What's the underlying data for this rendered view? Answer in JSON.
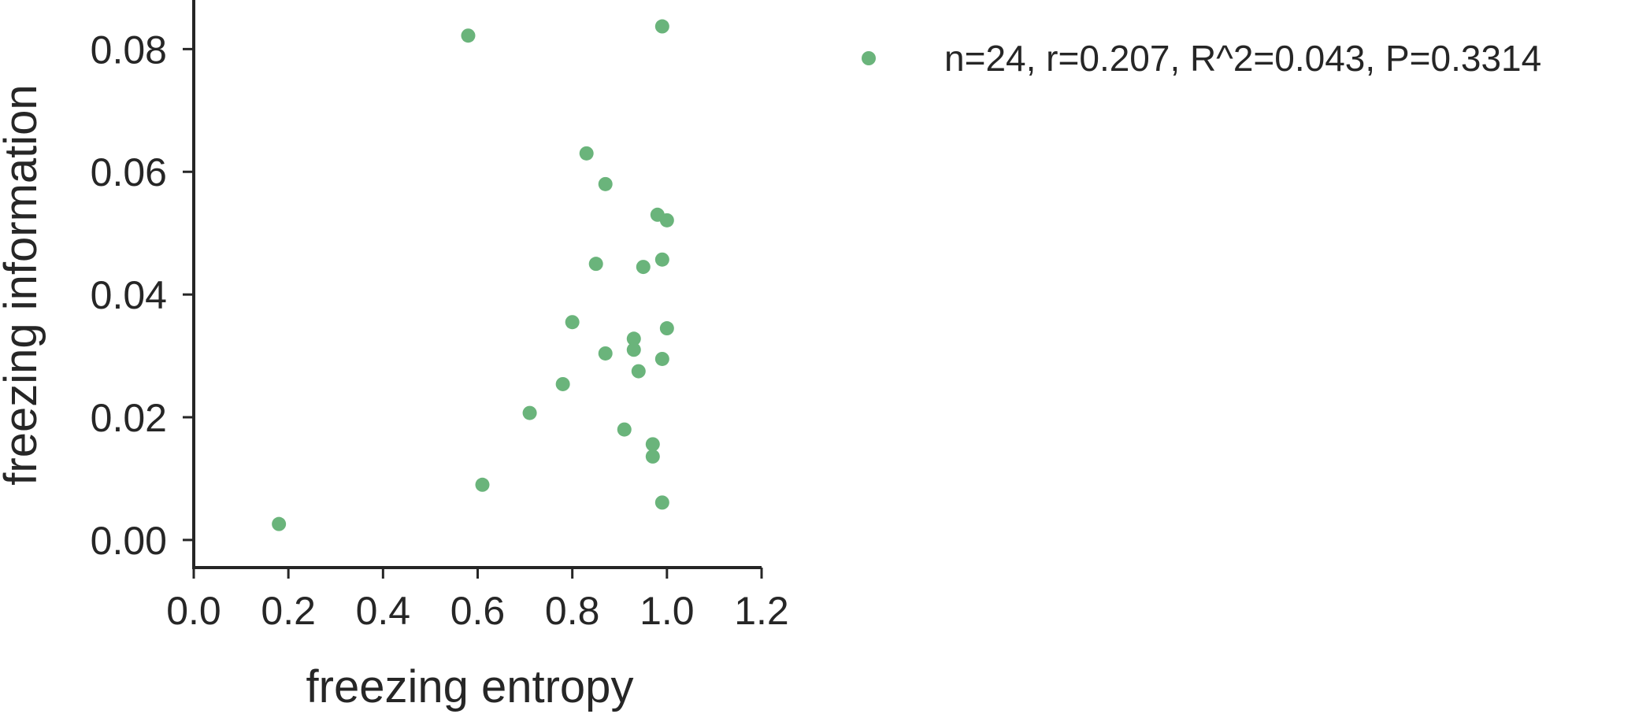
{
  "chart_data": {
    "type": "scatter",
    "title": "",
    "xlabel": "freezing entropy",
    "ylabel": "freezing information",
    "xlim": [
      0.0,
      1.2
    ],
    "ylim": [
      -0.0045,
      0.088
    ],
    "xticks": [
      0.0,
      0.2,
      0.4,
      0.6,
      0.8,
      1.0,
      1.2
    ],
    "xtick_labels": [
      "0.0",
      "0.2",
      "0.4",
      "0.6",
      "0.8",
      "1.0",
      "1.2"
    ],
    "yticks": [
      0.0,
      0.02,
      0.04,
      0.06,
      0.08
    ],
    "ytick_labels": [
      "0.00",
      "0.02",
      "0.04",
      "0.06",
      "0.08"
    ],
    "grid": false,
    "legend_position": "top-right, outside plot area",
    "color": "#6ab47b",
    "series": [
      {
        "name": "n=24, r=0.207, R^2=0.043, P=0.3314",
        "x": [
          0.18,
          0.58,
          0.99,
          0.83,
          0.87,
          0.98,
          1.0,
          0.85,
          0.95,
          0.99,
          0.8,
          0.93,
          1.0,
          0.93,
          0.87,
          0.99,
          0.94,
          0.78,
          0.71,
          0.91,
          0.97,
          0.97,
          0.61,
          0.99
        ],
        "y": [
          0.0026,
          0.0822,
          0.0837,
          0.063,
          0.058,
          0.053,
          0.0521,
          0.045,
          0.0445,
          0.0457,
          0.0355,
          0.0328,
          0.0345,
          0.031,
          0.0304,
          0.0295,
          0.0275,
          0.0254,
          0.0207,
          0.018,
          0.0156,
          0.0136,
          0.009,
          0.0061
        ]
      }
    ]
  }
}
